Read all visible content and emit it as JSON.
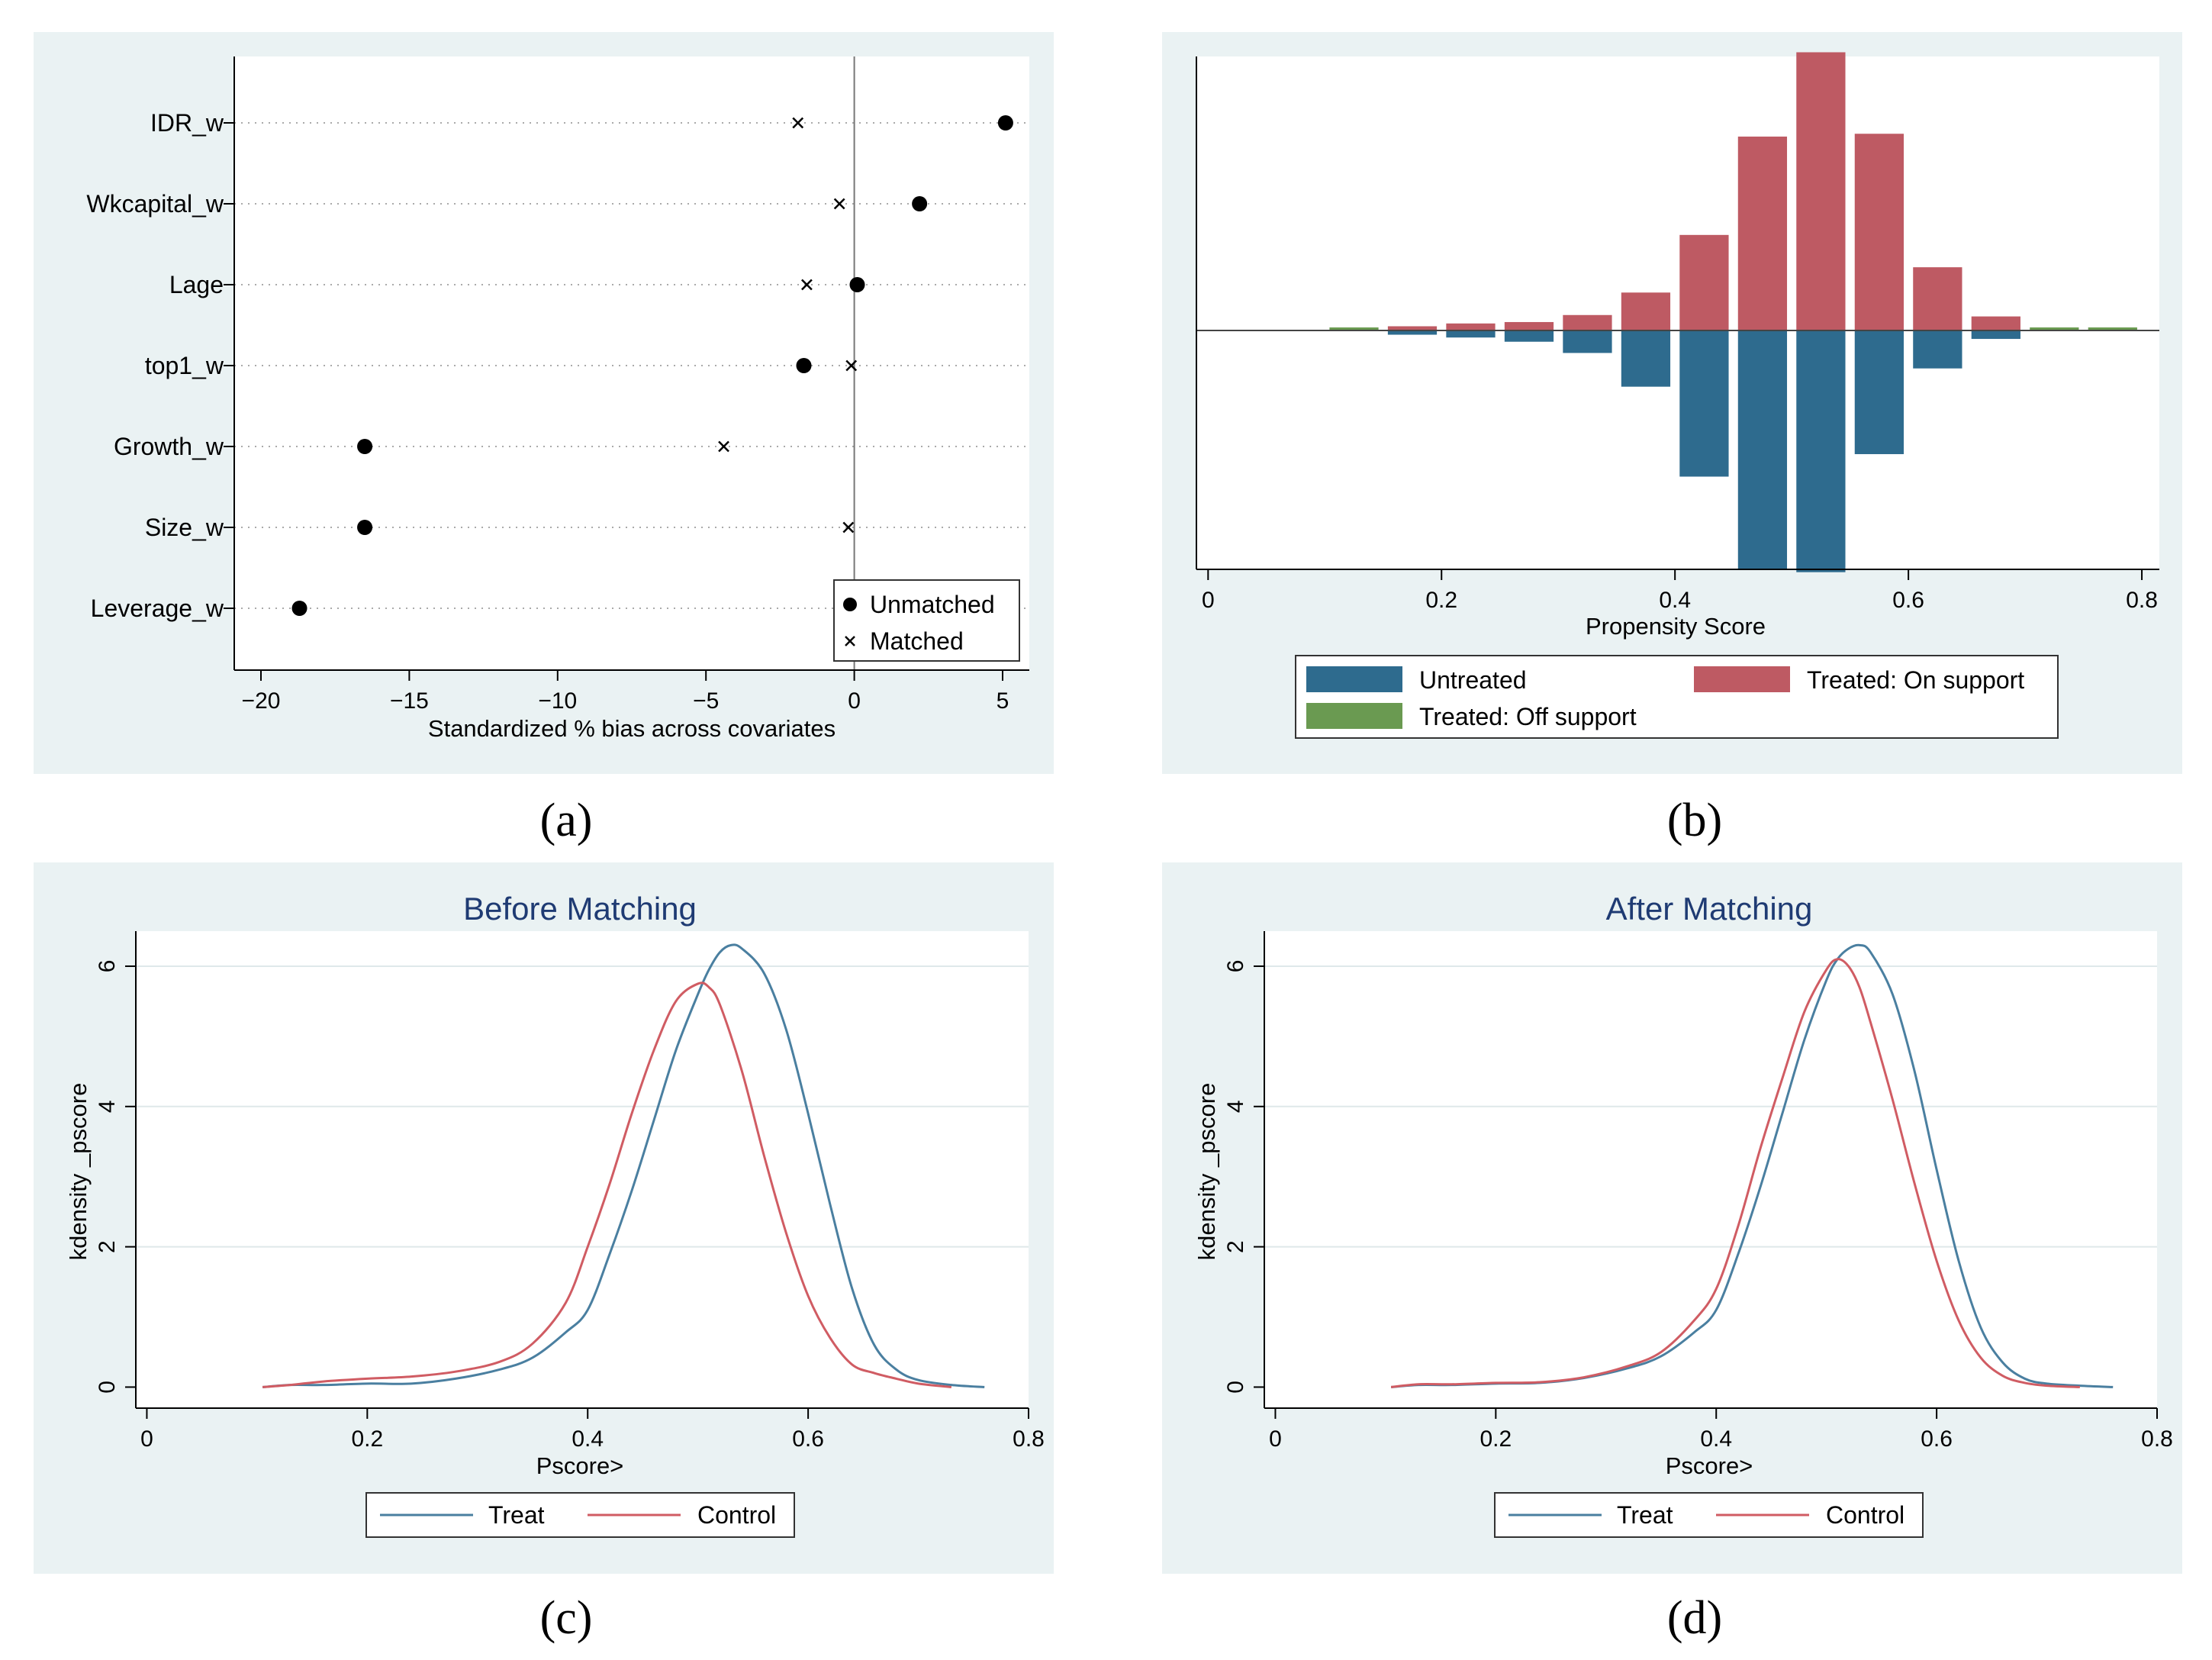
{
  "captions": {
    "a": "(a)",
    "b": "(b)",
    "c": "(c)",
    "d": "(d)"
  },
  "colors": {
    "untreated": "#2e6b8e",
    "treated_on": "#be5a63",
    "treated_off": "#6a9a51",
    "treat_line": "#4a7fa0",
    "control_line": "#d05c63",
    "panel_bg": "#eaf2f3",
    "title": "#1f3b73"
  },
  "chart_data": [
    {
      "id": "a",
      "type": "scatter",
      "title": "",
      "xlabel": "Standardized % bias across covariates",
      "ylabel": "",
      "xlim": [
        -20.9,
        5.9
      ],
      "xticks": [
        -20,
        -15,
        -10,
        -5,
        0,
        5
      ],
      "xtick_labels": [
        "−20",
        "−15",
        "−10",
        "−5",
        "0",
        "5"
      ],
      "categories": [
        "IDR_w",
        "Wkcapital_w",
        "Lage",
        "top1_w",
        "Growth_w",
        "Size_w",
        "Leverage_w"
      ],
      "series": [
        {
          "name": "Unmatched",
          "marker": "dot",
          "values": [
            5.1,
            2.2,
            0.1,
            -1.7,
            -16.5,
            -16.5,
            -18.7
          ]
        },
        {
          "name": "Matched",
          "marker": "x",
          "values": [
            -1.9,
            -0.5,
            -1.6,
            -0.1,
            -4.4,
            -0.2,
            null
          ]
        }
      ],
      "reference_line": 0,
      "legend": {
        "position": "bottom-right",
        "entries": [
          "Unmatched",
          "Matched"
        ]
      }
    },
    {
      "id": "b",
      "type": "bar",
      "title": "",
      "xlabel": "Propensity Score",
      "ylabel": "",
      "xlim": [
        -0.01,
        0.815
      ],
      "xticks": [
        0,
        0.2,
        0.4,
        0.6,
        0.8
      ],
      "xtick_labels": [
        "0",
        "0.2",
        "0.4",
        "0.6",
        "0.8"
      ],
      "bin_width": 0.05,
      "bin_centers": [
        0.125,
        0.175,
        0.225,
        0.275,
        0.325,
        0.375,
        0.425,
        0.475,
        0.525,
        0.575,
        0.625,
        0.675,
        0.725,
        0.775
      ],
      "ylim": [
        -0.17,
        0.195
      ],
      "series": [
        {
          "name": "Untreated",
          "direction": "down",
          "values": [
            0.0,
            0.003,
            0.005,
            0.008,
            0.016,
            0.04,
            0.104,
            0.17,
            0.172,
            0.088,
            0.027,
            0.006,
            0.0,
            0.0
          ]
        },
        {
          "name": "Treated: On support",
          "direction": "up",
          "values": [
            0.0,
            0.003,
            0.005,
            0.006,
            0.011,
            0.027,
            0.068,
            0.138,
            0.198,
            0.14,
            0.045,
            0.01,
            0.0,
            0.0
          ]
        },
        {
          "name": "Treated: Off support",
          "direction": "up",
          "values": [
            0.002,
            0.0,
            0.0,
            0.0,
            0.0,
            0.0,
            0.0,
            0.0,
            0.0,
            0.0,
            0.0,
            0.0,
            0.002,
            0.001
          ]
        }
      ],
      "legend": {
        "position": "bottom",
        "entries": [
          "Untreated",
          "Treated: On support",
          "Treated: Off support"
        ]
      }
    },
    {
      "id": "c",
      "type": "line",
      "title": "Before Matching",
      "xlabel": "Pscore>",
      "ylabel": "kdensity _pscore",
      "xlim": [
        -0.01,
        0.8
      ],
      "ylim": [
        -0.3,
        6.5
      ],
      "xticks": [
        0,
        0.2,
        0.4,
        0.6,
        0.8
      ],
      "xtick_labels": [
        "0",
        "0.2",
        "0.4",
        "0.6",
        "0.8"
      ],
      "yticks": [
        0,
        2,
        4,
        6
      ],
      "ytick_labels": [
        "0",
        "2",
        "4",
        "6"
      ],
      "series": [
        {
          "name": "Treat",
          "x": [
            0.105,
            0.13,
            0.16,
            0.2,
            0.24,
            0.28,
            0.32,
            0.35,
            0.38,
            0.4,
            0.42,
            0.44,
            0.46,
            0.48,
            0.5,
            0.51,
            0.52,
            0.53,
            0.54,
            0.56,
            0.58,
            0.6,
            0.62,
            0.64,
            0.66,
            0.68,
            0.7,
            0.73,
            0.76
          ],
          "y": [
            0.0,
            0.03,
            0.03,
            0.05,
            0.05,
            0.12,
            0.25,
            0.42,
            0.78,
            1.1,
            1.9,
            2.8,
            3.8,
            4.8,
            5.6,
            5.95,
            6.2,
            6.3,
            6.25,
            5.9,
            5.1,
            3.9,
            2.6,
            1.4,
            0.6,
            0.25,
            0.1,
            0.03,
            0.0
          ]
        },
        {
          "name": "Control",
          "x": [
            0.105,
            0.13,
            0.16,
            0.2,
            0.24,
            0.28,
            0.32,
            0.35,
            0.38,
            0.4,
            0.42,
            0.44,
            0.46,
            0.48,
            0.5,
            0.51,
            0.52,
            0.54,
            0.56,
            0.58,
            0.6,
            0.62,
            0.64,
            0.66,
            0.68,
            0.7,
            0.73
          ],
          "y": [
            0.0,
            0.03,
            0.08,
            0.12,
            0.15,
            0.22,
            0.36,
            0.62,
            1.2,
            2.0,
            2.9,
            3.9,
            4.8,
            5.5,
            5.75,
            5.7,
            5.45,
            4.5,
            3.3,
            2.2,
            1.3,
            0.7,
            0.32,
            0.2,
            0.12,
            0.05,
            0.0
          ]
        }
      ],
      "legend": {
        "position": "bottom",
        "entries": [
          "Treat",
          "Control"
        ]
      }
    },
    {
      "id": "d",
      "type": "line",
      "title": "After Matching",
      "xlabel": "Pscore>",
      "ylabel": "kdensity _pscore",
      "xlim": [
        -0.01,
        0.8
      ],
      "ylim": [
        -0.3,
        6.5
      ],
      "xticks": [
        0,
        0.2,
        0.4,
        0.6,
        0.8
      ],
      "xtick_labels": [
        "0",
        "0.2",
        "0.4",
        "0.6",
        "0.8"
      ],
      "yticks": [
        0,
        2,
        4,
        6
      ],
      "ytick_labels": [
        "0",
        "2",
        "4",
        "6"
      ],
      "series": [
        {
          "name": "Treat",
          "x": [
            0.105,
            0.13,
            0.16,
            0.2,
            0.24,
            0.28,
            0.32,
            0.35,
            0.38,
            0.4,
            0.42,
            0.44,
            0.46,
            0.48,
            0.5,
            0.51,
            0.52,
            0.53,
            0.54,
            0.56,
            0.58,
            0.6,
            0.62,
            0.64,
            0.66,
            0.68,
            0.7,
            0.73,
            0.76
          ],
          "y": [
            0.0,
            0.03,
            0.03,
            0.05,
            0.06,
            0.13,
            0.27,
            0.44,
            0.78,
            1.1,
            1.9,
            2.85,
            3.9,
            4.95,
            5.8,
            6.1,
            6.25,
            6.3,
            6.2,
            5.6,
            4.5,
            3.1,
            1.8,
            0.85,
            0.35,
            0.12,
            0.05,
            0.02,
            0.0
          ]
        },
        {
          "name": "Control",
          "x": [
            0.105,
            0.13,
            0.16,
            0.2,
            0.24,
            0.28,
            0.32,
            0.35,
            0.38,
            0.4,
            0.42,
            0.44,
            0.46,
            0.48,
            0.5,
            0.51,
            0.52,
            0.53,
            0.54,
            0.56,
            0.58,
            0.6,
            0.62,
            0.64,
            0.66,
            0.68,
            0.7,
            0.73
          ],
          "y": [
            0.0,
            0.04,
            0.04,
            0.06,
            0.07,
            0.14,
            0.3,
            0.5,
            0.95,
            1.4,
            2.3,
            3.4,
            4.4,
            5.35,
            5.95,
            6.1,
            6.0,
            5.7,
            5.2,
            4.1,
            2.9,
            1.8,
            0.95,
            0.42,
            0.16,
            0.06,
            0.02,
            0.0
          ]
        }
      ],
      "legend": {
        "position": "bottom",
        "entries": [
          "Treat",
          "Control"
        ]
      }
    }
  ]
}
